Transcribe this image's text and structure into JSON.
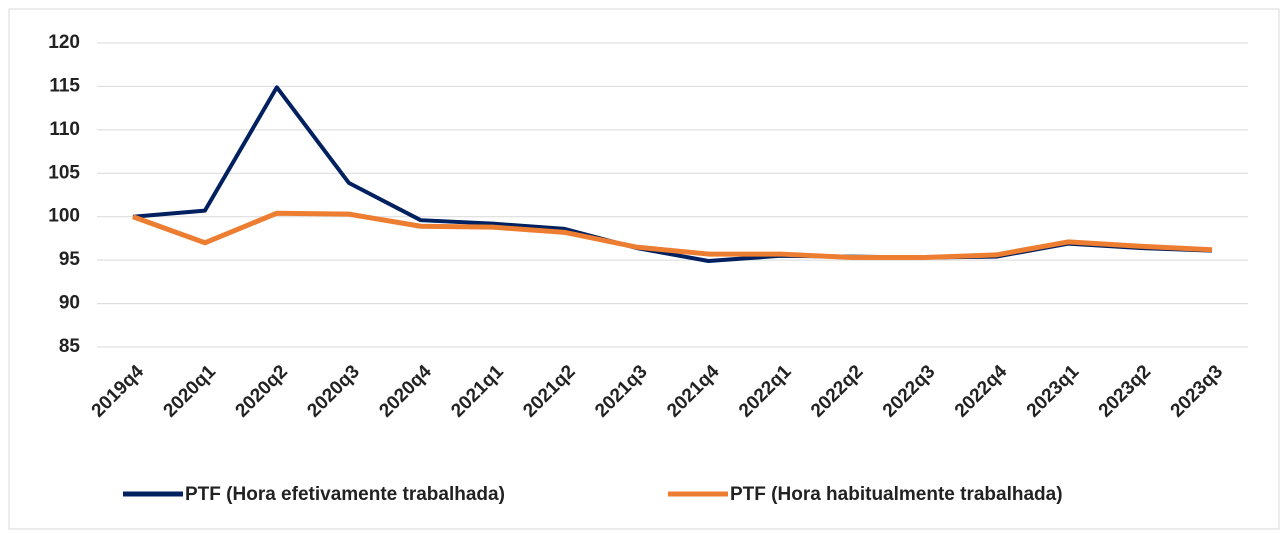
{
  "chart_data": {
    "type": "line",
    "categories": [
      "2019q4",
      "2020q1",
      "2020q2",
      "2020q3",
      "2020q4",
      "2021q1",
      "2021q2",
      "2021q3",
      "2021q4",
      "2022q1",
      "2022q2",
      "2022q3",
      "2022q4",
      "2023q1",
      "2023q2",
      "2023q3"
    ],
    "series": [
      {
        "name": "PTF (Hora efetivamente trabalhada)",
        "color": "#002060",
        "values": [
          100,
          100.7,
          114.9,
          103.9,
          99.6,
          99.2,
          98.6,
          96.4,
          94.9,
          95.5,
          95.4,
          95.3,
          95.4,
          96.9,
          96.4,
          96.1
        ]
      },
      {
        "name": "PTF (Hora habitualmente trabalhada)",
        "color": "#ED7D31",
        "values": [
          100,
          97.0,
          100.4,
          100.3,
          98.9,
          98.8,
          98.2,
          96.5,
          95.7,
          95.7,
          95.3,
          95.3,
          95.6,
          97.1,
          96.6,
          96.2
        ]
      }
    ],
    "ylim": [
      85,
      120
    ],
    "yticks": [
      85,
      90,
      95,
      100,
      105,
      110,
      115,
      120
    ],
    "grid": true,
    "legend": "bottom"
  }
}
